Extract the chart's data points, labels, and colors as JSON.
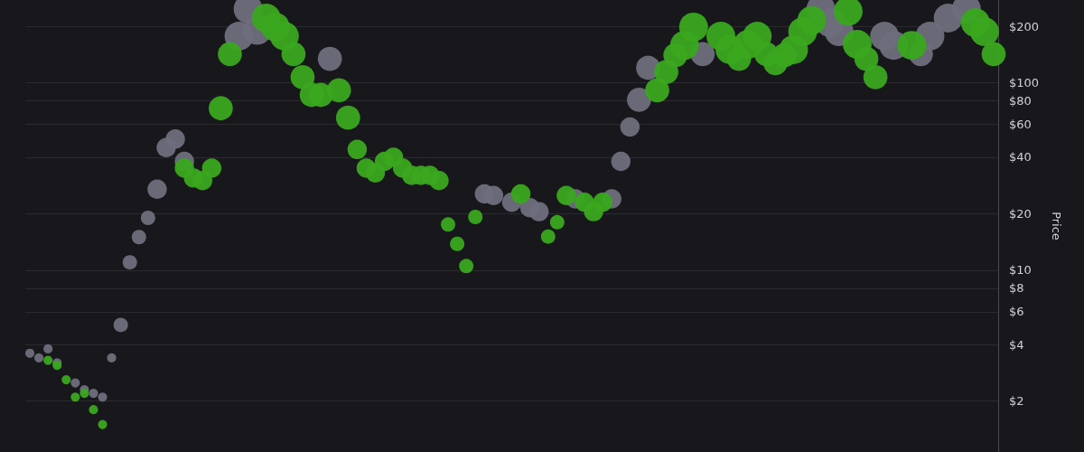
{
  "chart_data": {
    "type": "bubble",
    "ylabel": "Price",
    "log": "y",
    "grid": "y",
    "marker": "circle",
    "tick_labels": "y",
    "categories": [
      null,
      null,
      null,
      null,
      null,
      null,
      null,
      null,
      null,
      null,
      null,
      null,
      null,
      null,
      null,
      null,
      null,
      null,
      null,
      null,
      null,
      null,
      null,
      null,
      null,
      null,
      null,
      null,
      null,
      null,
      null,
      null,
      null,
      null,
      null,
      null,
      null,
      null,
      null,
      null,
      null,
      null,
      null,
      null,
      null,
      null,
      null,
      null,
      null,
      null,
      null,
      null,
      null,
      null,
      null,
      null,
      null,
      null,
      null,
      null,
      null,
      null,
      null,
      null,
      null,
      null,
      null,
      null,
      null,
      null,
      null,
      null,
      null,
      null,
      null,
      null,
      null,
      null,
      null,
      null,
      null,
      null,
      null,
      null,
      null,
      null,
      null,
      null,
      null,
      null,
      null,
      null,
      null,
      null,
      null,
      null,
      null,
      null,
      null,
      null,
      null,
      null,
      null,
      null,
      null,
      null,
      null
    ],
    "ylim": [
      1.07,
      276
    ],
    "yticks": [
      {
        "value": 2,
        "label": "$2"
      },
      {
        "value": 4,
        "label": "$4"
      },
      {
        "value": 6,
        "label": "$6"
      },
      {
        "value": 8,
        "label": "$8"
      },
      {
        "value": 10,
        "label": "$10"
      },
      {
        "value": 20,
        "label": "$20"
      },
      {
        "value": 40,
        "label": "$40"
      },
      {
        "value": 60,
        "label": "$60"
      },
      {
        "value": 80,
        "label": "$80"
      },
      {
        "value": 100,
        "label": "$100"
      },
      {
        "value": 200,
        "label": "$200"
      }
    ],
    "series": [
      {
        "color": "#6f6e7d",
        "values": [
          3.6,
          3.4,
          3.8,
          3.2,
          null,
          2.5,
          2.3,
          2.2,
          2.1,
          3.4,
          5.1,
          11,
          15,
          19,
          27,
          45,
          50,
          38,
          null,
          null,
          null,
          null,
          null,
          177,
          247,
          190,
          null,
          null,
          null,
          null,
          null,
          null,
          null,
          134,
          null,
          null,
          null,
          null,
          null,
          null,
          null,
          null,
          null,
          null,
          null,
          null,
          null,
          null,
          null,
          null,
          25.5,
          25,
          null,
          23,
          null,
          21.5,
          20.5,
          null,
          null,
          null,
          24,
          null,
          null,
          null,
          24,
          38,
          58,
          81,
          120,
          null,
          null,
          null,
          null,
          null,
          142,
          null,
          null,
          null,
          null,
          null,
          null,
          null,
          null,
          null,
          null,
          null,
          null,
          247,
          209,
          187,
          null,
          null,
          null,
          null,
          177,
          158,
          null,
          null,
          142,
          177,
          null,
          221,
          null,
          247,
          null,
          null,
          null
        ],
        "sizes": [
          0.1,
          0.1,
          0.1,
          0.1,
          null,
          0.1,
          0.1,
          0.1,
          0.1,
          0.1,
          0.25,
          0.25,
          0.25,
          0.25,
          0.45,
          0.45,
          0.45,
          0.45,
          null,
          null,
          null,
          null,
          null,
          1,
          1,
          1,
          null,
          null,
          null,
          null,
          null,
          null,
          null,
          0.7,
          null,
          null,
          null,
          null,
          null,
          null,
          null,
          null,
          null,
          null,
          null,
          null,
          null,
          null,
          null,
          null,
          0.45,
          0.45,
          null,
          0.45,
          null,
          0.45,
          0.45,
          null,
          null,
          null,
          0.45,
          null,
          null,
          null,
          0.45,
          0.45,
          0.45,
          0.7,
          0.7,
          null,
          null,
          null,
          null,
          null,
          0.7,
          null,
          null,
          null,
          null,
          null,
          null,
          null,
          null,
          null,
          null,
          null,
          null,
          1,
          1,
          1,
          null,
          null,
          null,
          null,
          1,
          1,
          null,
          null,
          0.7,
          1,
          null,
          1,
          null,
          1,
          null,
          null,
          null
        ]
      },
      {
        "color": "#3aa81f",
        "values": [
          null,
          null,
          3.3,
          3.1,
          2.6,
          2.1,
          2.2,
          1.8,
          1.5,
          null,
          null,
          null,
          null,
          null,
          null,
          null,
          null,
          35,
          31,
          30,
          35,
          73,
          142,
          null,
          null,
          null,
          221,
          198,
          177,
          142,
          107,
          86,
          86,
          null,
          91,
          65,
          44,
          35,
          33,
          38,
          40,
          35,
          32,
          32,
          32,
          30,
          17.5,
          13.8,
          10.5,
          19.2,
          null,
          null,
          null,
          null,
          25.5,
          null,
          null,
          15.1,
          18,
          25,
          null,
          23,
          20.5,
          23,
          null,
          null,
          null,
          null,
          null,
          91,
          114,
          140,
          158,
          198,
          null,
          null,
          177,
          150,
          134,
          160,
          177,
          142,
          127,
          140,
          150,
          187,
          215,
          null,
          null,
          null,
          240,
          160,
          134,
          107,
          null,
          null,
          null,
          158,
          null,
          null,
          null,
          null,
          null,
          null,
          209,
          187,
          142
        ],
        "sizes": [
          null,
          null,
          0.1,
          0.1,
          0.1,
          0.1,
          0.1,
          0.1,
          0.1,
          null,
          null,
          null,
          null,
          null,
          null,
          null,
          null,
          0.45,
          0.45,
          0.45,
          0.45,
          0.7,
          0.7,
          null,
          null,
          null,
          1,
          1,
          1,
          0.7,
          0.7,
          0.7,
          0.7,
          null,
          0.7,
          0.7,
          0.45,
          0.45,
          0.45,
          0.45,
          0.45,
          0.45,
          0.45,
          0.45,
          0.45,
          0.45,
          0.25,
          0.25,
          0.25,
          0.25,
          null,
          null,
          null,
          null,
          0.45,
          null,
          null,
          0.25,
          0.25,
          0.45,
          null,
          0.45,
          0.45,
          0.45,
          null,
          null,
          null,
          null,
          null,
          0.7,
          0.7,
          0.7,
          1,
          1,
          null,
          null,
          1,
          1,
          0.7,
          1,
          1,
          0.7,
          0.7,
          0.7,
          1,
          1,
          1,
          null,
          null,
          null,
          1,
          1,
          0.7,
          0.7,
          null,
          null,
          null,
          1,
          null,
          null,
          null,
          null,
          null,
          null,
          1,
          1,
          0.7
        ]
      }
    ]
  }
}
